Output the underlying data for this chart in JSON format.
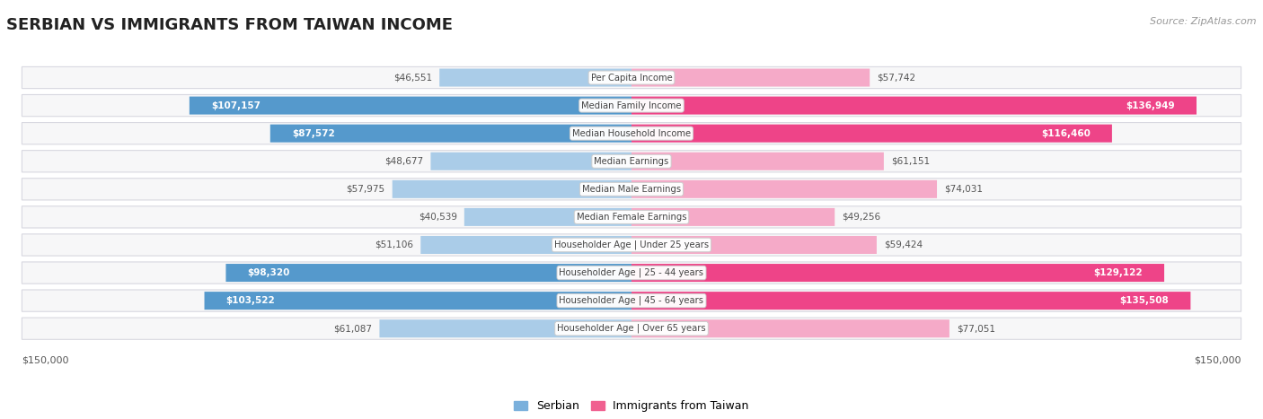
{
  "title": "SERBIAN VS IMMIGRANTS FROM TAIWAN INCOME",
  "source": "Source: ZipAtlas.com",
  "categories": [
    "Per Capita Income",
    "Median Family Income",
    "Median Household Income",
    "Median Earnings",
    "Median Male Earnings",
    "Median Female Earnings",
    "Householder Age | Under 25 years",
    "Householder Age | 25 - 44 years",
    "Householder Age | 45 - 64 years",
    "Householder Age | Over 65 years"
  ],
  "serbian_values": [
    46551,
    107157,
    87572,
    48677,
    57975,
    40539,
    51106,
    98320,
    103522,
    61087
  ],
  "taiwan_values": [
    57742,
    136949,
    116460,
    61151,
    74031,
    49256,
    59424,
    129122,
    135508,
    77051
  ],
  "serbian_labels": [
    "$46,551",
    "$107,157",
    "$87,572",
    "$48,677",
    "$57,975",
    "$40,539",
    "$51,106",
    "$98,320",
    "$103,522",
    "$61,087"
  ],
  "taiwan_labels": [
    "$57,742",
    "$136,949",
    "$116,460",
    "$61,151",
    "$74,031",
    "$49,256",
    "$59,424",
    "$129,122",
    "$135,508",
    "$77,051"
  ],
  "serbian_color_light": "#aacce8",
  "taiwan_color_light": "#f5aac8",
  "serbian_color_dark": "#5599cc",
  "taiwan_color_dark": "#ee4488",
  "serbian_legend_color": "#7ab0dc",
  "taiwan_legend_color": "#f06090",
  "max_value": 150000,
  "row_bg": "#f7f7f8",
  "row_border": "#d8d8e0",
  "label_thresh_serbian": 75000,
  "label_thresh_taiwan": 100000
}
